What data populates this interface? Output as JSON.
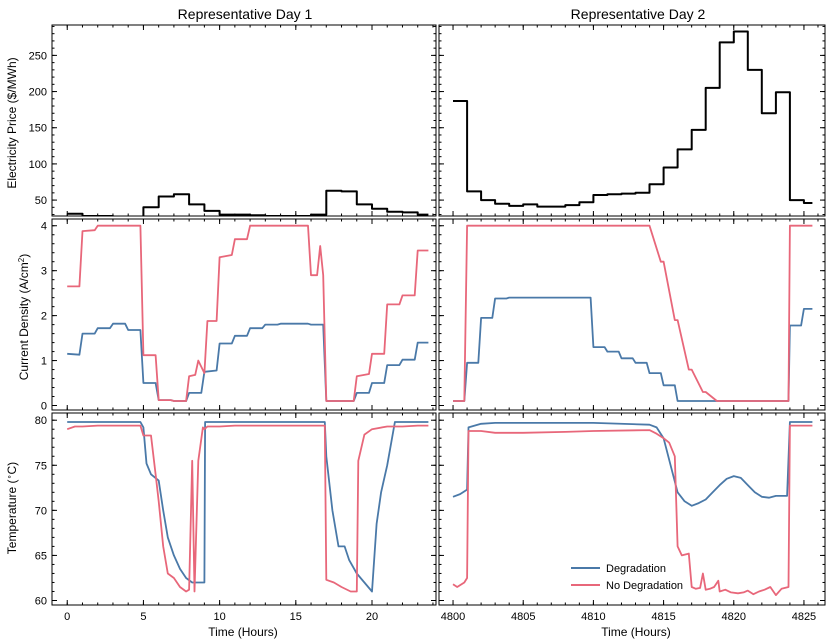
{
  "colors": {
    "price": "#000000",
    "degradation": "#4a79a8",
    "no_degradation": "#e8677a"
  },
  "chart_data": [
    {
      "type": "line",
      "panel": "price-day1",
      "title": "Representative Day 1",
      "xlabel": "",
      "ylabel": "Electricity Price ($/MWh)",
      "xlim": [
        -1,
        24.2
      ],
      "ylim": [
        28,
        292
      ],
      "xticks": [
        0,
        5,
        10,
        15,
        20
      ],
      "yticks": [
        50,
        100,
        150,
        200,
        250
      ],
      "series": [
        {
          "name": "Price",
          "color": "#000000",
          "x": [
            0,
            1,
            1,
            2,
            2,
            3,
            3,
            4,
            4,
            5,
            5,
            6,
            6,
            7,
            7,
            8,
            8,
            9,
            9,
            10,
            10,
            11,
            11,
            12,
            12,
            13,
            13,
            14,
            14,
            15,
            15,
            16,
            16,
            17,
            17,
            18,
            18,
            19,
            19,
            20,
            20,
            21,
            21,
            22,
            22,
            23,
            23,
            23.7
          ],
          "y": [
            31,
            31,
            28,
            28,
            28,
            28,
            27,
            27,
            27,
            27,
            40,
            40,
            55,
            55,
            58,
            58,
            44,
            44,
            35,
            35,
            30,
            30,
            30,
            30,
            29,
            29,
            28,
            28,
            28,
            28,
            28,
            28,
            30,
            30,
            63,
            63,
            62,
            62,
            44,
            44,
            38,
            38,
            34,
            34,
            33,
            33,
            30,
            30
          ]
        }
      ]
    },
    {
      "type": "line",
      "panel": "price-day2",
      "title": "Representative Day 2",
      "xlabel": "",
      "ylabel": "",
      "xlim": [
        4799,
        4826.5
      ],
      "ylim": [
        28,
        292
      ],
      "xticks": [
        4800,
        4805,
        4810,
        4815,
        4820,
        4825
      ],
      "yticks": [
        50,
        100,
        150,
        200,
        250
      ],
      "series": [
        {
          "name": "Price",
          "color": "#000000",
          "x": [
            4800,
            4801,
            4801,
            4802,
            4802,
            4803,
            4803,
            4804,
            4804,
            4805,
            4805,
            4806,
            4806,
            4807,
            4807,
            4808,
            4808,
            4809,
            4809,
            4810,
            4810,
            4811,
            4811,
            4812,
            4812,
            4813,
            4813,
            4814,
            4814,
            4815,
            4815,
            4816,
            4816,
            4817,
            4817,
            4818,
            4818,
            4819,
            4819,
            4820,
            4820,
            4821,
            4821,
            4822,
            4822,
            4823,
            4823,
            4824,
            4824,
            4825,
            4825,
            4825.6
          ],
          "y": [
            187,
            187,
            62,
            62,
            50,
            50,
            45,
            45,
            42,
            42,
            44,
            44,
            41,
            41,
            41,
            41,
            43,
            43,
            47,
            47,
            57,
            57,
            58,
            58,
            59,
            59,
            60,
            60,
            72,
            72,
            95,
            95,
            120,
            120,
            147,
            147,
            205,
            205,
            268,
            268,
            283,
            283,
            230,
            230,
            170,
            170,
            199,
            199,
            50,
            50,
            46,
            46
          ]
        }
      ]
    },
    {
      "type": "line",
      "panel": "current-day1",
      "xlabel": "",
      "ylabel": "Current Density (A/cm2)",
      "xlim": [
        -1,
        24.2
      ],
      "ylim": [
        -0.1,
        4.15
      ],
      "xticks": [
        0,
        5,
        10,
        15,
        20
      ],
      "yticks": [
        0,
        1,
        2,
        3,
        4
      ],
      "series": [
        {
          "name": "Degradation",
          "color": "#4a79a8",
          "x": [
            0,
            0.8,
            1,
            1.8,
            2,
            2.8,
            3,
            3.8,
            4,
            4.8,
            5,
            5.8,
            6,
            6.8,
            7,
            7.8,
            8,
            8.8,
            9,
            9.8,
            10,
            10.8,
            11,
            11.8,
            12,
            12.8,
            13,
            13.8,
            14,
            14.8,
            15,
            15.8,
            16,
            16.8,
            17,
            17.8,
            18,
            18.8,
            19,
            19.8,
            20,
            20.8,
            21,
            21.8,
            22,
            22.8,
            23,
            23.7
          ],
          "y": [
            1.15,
            1.13,
            1.6,
            1.6,
            1.72,
            1.72,
            1.82,
            1.82,
            1.68,
            1.68,
            0.5,
            0.5,
            0.12,
            0.12,
            0.1,
            0.1,
            0.28,
            0.28,
            0.75,
            0.78,
            1.38,
            1.38,
            1.55,
            1.55,
            1.72,
            1.72,
            1.8,
            1.8,
            1.82,
            1.82,
            1.82,
            1.82,
            1.8,
            1.8,
            0.1,
            0.1,
            0.1,
            0.1,
            0.28,
            0.28,
            0.5,
            0.5,
            0.9,
            0.9,
            1.02,
            1.02,
            1.4,
            1.4
          ]
        },
        {
          "name": "No Degradation",
          "color": "#e8677a",
          "x": [
            0,
            0.8,
            1,
            1.8,
            2,
            2.8,
            3,
            3.8,
            4,
            4.8,
            5,
            5.8,
            6,
            6.8,
            7,
            7.8,
            8,
            8.4,
            8.6,
            9,
            9.2,
            9.8,
            10,
            10.8,
            11,
            11.8,
            12,
            12.8,
            13,
            13.8,
            14,
            14.8,
            15,
            15.8,
            16,
            16.4,
            16.6,
            16.8,
            17,
            17.8,
            18,
            18.8,
            19,
            19.8,
            20,
            20.8,
            21,
            21.8,
            22,
            22.8,
            23,
            23.7
          ],
          "y": [
            2.65,
            2.65,
            3.88,
            3.9,
            4,
            4,
            4,
            4,
            4,
            4,
            1.12,
            1.12,
            0.12,
            0.12,
            0.1,
            0.1,
            0.65,
            0.68,
            1,
            0.72,
            1.88,
            1.88,
            3.3,
            3.35,
            3.7,
            3.7,
            4,
            4,
            4,
            4,
            4,
            4,
            4,
            4,
            2.9,
            2.9,
            3.55,
            2.9,
            0.1,
            0.1,
            0.1,
            0.1,
            0.65,
            0.7,
            1.15,
            1.15,
            2.25,
            2.25,
            2.45,
            2.45,
            3.45,
            3.45
          ]
        }
      ]
    },
    {
      "type": "line",
      "panel": "current-day2",
      "xlabel": "",
      "ylabel": "",
      "xlim": [
        4799,
        4826.5
      ],
      "ylim": [
        -0.1,
        4.15
      ],
      "xticks": [
        4800,
        4805,
        4810,
        4815,
        4820,
        4825
      ],
      "yticks": [
        0,
        1,
        2,
        3,
        4
      ],
      "series": [
        {
          "name": "Degradation",
          "color": "#4a79a8",
          "x": [
            4800,
            4800.8,
            4801,
            4801.8,
            4802,
            4802.8,
            4803,
            4803.8,
            4804,
            4805,
            4806,
            4807,
            4808,
            4809,
            4809.8,
            4810,
            4810.8,
            4811,
            4811.8,
            4812,
            4812.8,
            4813,
            4813.8,
            4814,
            4814.8,
            4815,
            4815.8,
            4816,
            4817,
            4818,
            4819,
            4820,
            4821,
            4822,
            4823,
            4823.9,
            4824,
            4824.8,
            4825,
            4825.6
          ],
          "y": [
            0.1,
            0.1,
            0.95,
            0.95,
            1.95,
            1.95,
            2.38,
            2.38,
            2.4,
            2.4,
            2.4,
            2.4,
            2.4,
            2.4,
            2.4,
            1.3,
            1.3,
            1.2,
            1.2,
            1.05,
            1.05,
            0.95,
            0.95,
            0.72,
            0.72,
            0.45,
            0.45,
            0.1,
            0.1,
            0.1,
            0.1,
            0.1,
            0.1,
            0.1,
            0.1,
            0.1,
            1.78,
            1.78,
            2.15,
            2.15
          ]
        },
        {
          "name": "No Degradation",
          "color": "#e8677a",
          "x": [
            4800,
            4800.8,
            4801,
            4802,
            4803,
            4804,
            4805,
            4806,
            4807,
            4808,
            4809,
            4810,
            4811,
            4812,
            4813,
            4814,
            4814.8,
            4815,
            4815.8,
            4816,
            4816.8,
            4817,
            4817.8,
            4818,
            4818.8,
            4819,
            4820,
            4821,
            4822,
            4823,
            4823.9,
            4824,
            4825,
            4825.6
          ],
          "y": [
            0.1,
            0.1,
            4,
            4,
            4,
            4,
            4,
            4,
            4,
            4,
            4,
            4,
            4,
            4,
            4,
            4,
            3.2,
            3.2,
            1.9,
            1.9,
            0.8,
            0.8,
            0.3,
            0.3,
            0.1,
            0.1,
            0.1,
            0.1,
            0.1,
            0.1,
            0.1,
            4,
            4,
            4
          ]
        }
      ]
    },
    {
      "type": "line",
      "panel": "temp-day1",
      "xlabel": "Time (Hours)",
      "ylabel": "Temperature (°C)",
      "xlim": [
        -1,
        24.2
      ],
      "ylim": [
        59.5,
        80.8
      ],
      "xticks": [
        0,
        5,
        10,
        15,
        20
      ],
      "yticks": [
        60,
        65,
        70,
        75,
        80
      ],
      "series": [
        {
          "name": "Degradation",
          "color": "#4a79a8",
          "x": [
            0,
            1,
            2,
            3,
            4,
            4.8,
            5,
            5.2,
            5.5,
            6,
            6.3,
            6.6,
            7,
            7.4,
            7.8,
            8.2,
            9,
            9.05,
            10,
            11,
            12,
            13,
            14,
            15,
            16,
            16.9,
            17,
            17.4,
            17.8,
            18.2,
            18.5,
            19,
            19.5,
            20,
            20.3,
            20.6,
            21,
            21.5,
            22,
            23,
            23.7
          ],
          "y": [
            79.8,
            79.8,
            79.8,
            79.8,
            79.8,
            79.8,
            79.2,
            75.2,
            74,
            73.3,
            70,
            67,
            65,
            63.5,
            62.5,
            62,
            62,
            79.8,
            79.8,
            79.8,
            79.8,
            79.8,
            79.8,
            79.8,
            79.8,
            79.8,
            76,
            70,
            66,
            66,
            64.5,
            63,
            62,
            61,
            68.5,
            72,
            75,
            79.8,
            79.8,
            79.8,
            79.8
          ]
        },
        {
          "name": "No Degradation",
          "color": "#e8677a",
          "x": [
            0,
            0.5,
            1,
            2,
            3,
            4,
            4.8,
            5,
            5.5,
            5.8,
            6,
            6.3,
            6.6,
            7,
            7.4,
            7.8,
            8,
            8.2,
            8.35,
            8.6,
            8.9,
            9,
            9.2,
            10,
            11,
            12,
            13,
            14,
            15,
            16,
            16.9,
            17,
            17.5,
            18,
            18.6,
            19,
            19.1,
            19.5,
            20,
            21,
            22,
            23,
            23.7
          ],
          "y": [
            79,
            79.3,
            79.3,
            79.4,
            79.4,
            79.4,
            79.4,
            78.3,
            78.3,
            74,
            71,
            66,
            63,
            62.5,
            61.5,
            61,
            61.2,
            75.5,
            61,
            75.5,
            79.2,
            79,
            79.3,
            79.3,
            79.4,
            79.4,
            79.4,
            79.4,
            79.4,
            79.4,
            79.4,
            62.3,
            62,
            61.5,
            61,
            61,
            75.5,
            78.4,
            79,
            79.3,
            79.3,
            79.4,
            79.4
          ]
        }
      ]
    },
    {
      "type": "line",
      "panel": "temp-day2",
      "xlabel": "Time (Hours)",
      "ylabel": "",
      "xlim": [
        4799,
        4826.5
      ],
      "ylim": [
        59.5,
        80.8
      ],
      "xticks": [
        4800,
        4805,
        4810,
        4815,
        4820,
        4825
      ],
      "yticks": [
        60,
        65,
        70,
        75,
        80
      ],
      "legend": {
        "entries": [
          "Degradation",
          "No Degradation"
        ],
        "location": "lower-right"
      },
      "series": [
        {
          "name": "Degradation",
          "color": "#4a79a8",
          "x": [
            4800,
            4800.5,
            4801,
            4801.1,
            4802,
            4803,
            4805,
            4810,
            4814,
            4814.5,
            4815,
            4815.5,
            4816,
            4816.5,
            4817,
            4817.5,
            4818,
            4818.5,
            4819,
            4819.5,
            4820,
            4820.5,
            4821,
            4821.5,
            4822,
            4822.5,
            4823,
            4823.8,
            4824,
            4825,
            4825.6
          ],
          "y": [
            71.5,
            71.8,
            72.3,
            79.2,
            79.6,
            79.7,
            79.7,
            79.7,
            79.5,
            79.2,
            78,
            75,
            72,
            71,
            70.5,
            70.8,
            71.2,
            72,
            72.8,
            73.5,
            73.8,
            73.6,
            72.8,
            72,
            71.5,
            71.4,
            71.6,
            71.6,
            79.8,
            79.8,
            79.8
          ]
        },
        {
          "name": "No Degradation",
          "color": "#e8677a",
          "x": [
            4800,
            4800.3,
            4800.8,
            4801,
            4801.1,
            4802,
            4803,
            4805,
            4808,
            4810,
            4814,
            4814.5,
            4815,
            4815.4,
            4815.8,
            4816,
            4816.3,
            4816.8,
            4817,
            4817.3,
            4817.6,
            4817.8,
            4818,
            4818.3,
            4818.6,
            4818.9,
            4819,
            4819.4,
            4819.8,
            4820.3,
            4820.7,
            4821,
            4821.4,
            4821.8,
            4822.2,
            4822.6,
            4823,
            4823.4,
            4823.9,
            4824,
            4825,
            4825.6
          ],
          "y": [
            61.8,
            61.5,
            62,
            62.5,
            78.8,
            78.8,
            78.6,
            78.6,
            78.7,
            78.8,
            78.9,
            78.5,
            78,
            77.5,
            76,
            66,
            65,
            65.2,
            61.5,
            61.3,
            61.4,
            63,
            61.2,
            61.3,
            61.5,
            62.2,
            61.0,
            61.2,
            60.9,
            60.8,
            60.9,
            61.1,
            60.7,
            61,
            61.2,
            61.5,
            60.6,
            61.3,
            61.5,
            79.4,
            79.4,
            79.4
          ]
        }
      ]
    }
  ]
}
